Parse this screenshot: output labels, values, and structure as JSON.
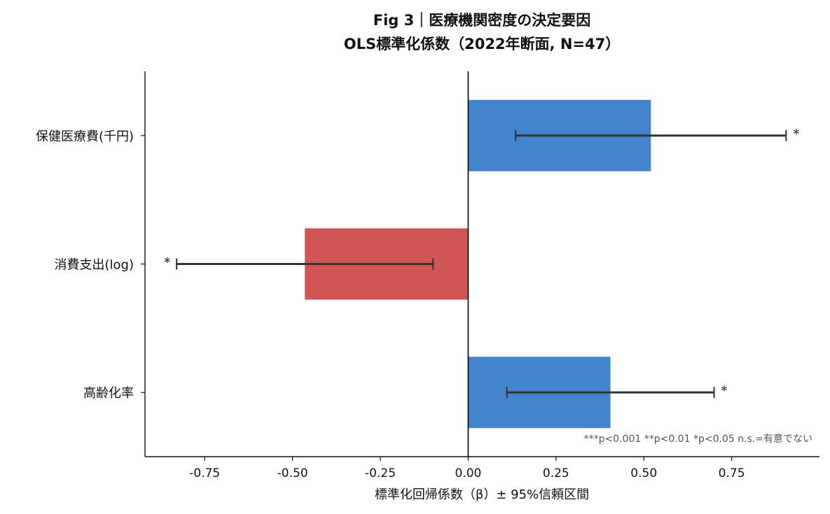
{
  "chart_data": {
    "type": "bar",
    "orientation": "horizontal",
    "title_line1": "Fig 3｜医療機関密度の決定要因",
    "title_line2": "OLS標準化係数（2022年断面, N=47）",
    "xlabel": "標準化回帰係数（β）± 95%信頼区間",
    "ylabel": "",
    "xlim": [
      -0.92,
      1.0
    ],
    "xticks": [
      "-0.75",
      "-0.50",
      "-0.25",
      "0.00",
      "0.25",
      "0.50",
      "0.75"
    ],
    "xtick_values": [
      -0.75,
      -0.5,
      -0.25,
      0.0,
      0.25,
      0.5,
      0.75
    ],
    "categories": [
      "保健医療費(千円)",
      "消費支出(log)",
      "高齢化率"
    ],
    "values": [
      0.52,
      -0.465,
      0.405
    ],
    "ci_low": [
      0.135,
      -0.83,
      0.11
    ],
    "ci_high": [
      0.905,
      -0.1,
      0.7
    ],
    "significance": [
      "*",
      "*",
      "*"
    ],
    "colors": [
      "#4484cc",
      "#d15454",
      "#4484cc"
    ],
    "positive_color": "#4484cc",
    "negative_color": "#d15454",
    "errorbar_color": "#333333",
    "grid": false,
    "note": "***p<0.001  **p<0.01  *p<0.05  n.s.=有意でない"
  }
}
